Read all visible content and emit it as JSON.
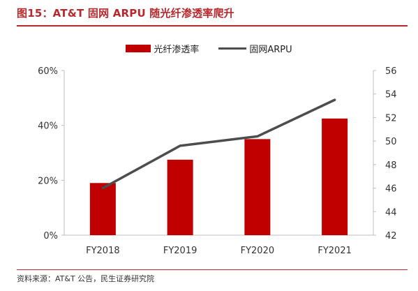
{
  "header": {
    "title": "图15：AT&T 固网 ARPU 随光纤渗透率爬升"
  },
  "footer": {
    "source": "资料来源：AT&T 公告，民生证券研究院"
  },
  "colors": {
    "bar": "#c00000",
    "line": "#4d4d4d",
    "accent": "#b8282c"
  },
  "chart_data": {
    "type": "bar",
    "categories": [
      "FY2018",
      "FY2019",
      "FY2020",
      "FY2021"
    ],
    "series": [
      {
        "name": "光纤渗透率",
        "kind": "bar",
        "axis": "left",
        "values": [
          19,
          27.5,
          35,
          42.5
        ]
      },
      {
        "name": "固网ARPU",
        "kind": "line",
        "axis": "right",
        "values": [
          46.0,
          49.6,
          50.4,
          53.5
        ]
      }
    ],
    "y_left": {
      "ticks": [
        "0%",
        "20%",
        "40%",
        "60%"
      ],
      "range": [
        0,
        60
      ]
    },
    "y_right": {
      "ticks": [
        "42",
        "44",
        "46",
        "48",
        "50",
        "52",
        "54",
        "56"
      ],
      "range": [
        42,
        56
      ]
    },
    "legend": "top-center"
  }
}
